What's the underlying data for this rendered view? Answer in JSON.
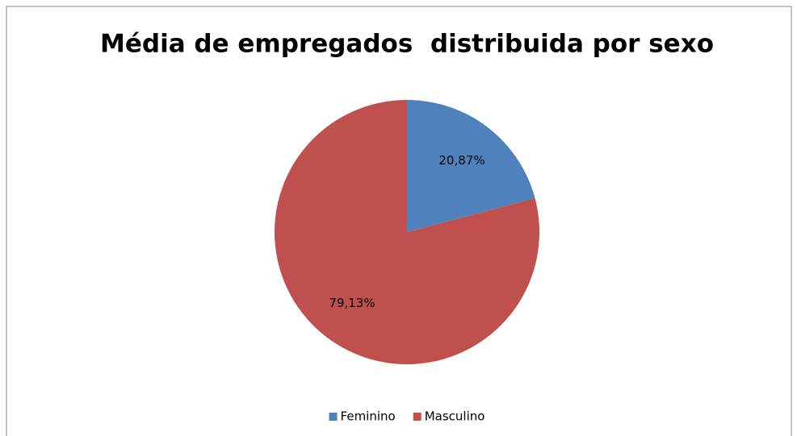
{
  "chart_data": {
    "type": "pie",
    "title": "Média de empregados  distribuida por sexo",
    "categories": [
      "Feminino",
      "Masculino"
    ],
    "values": [
      20.87,
      79.13
    ],
    "value_labels": [
      "20,87%",
      "79,13%"
    ],
    "colors": [
      "#4f81bd",
      "#c0504d"
    ],
    "legend": "bottom"
  }
}
